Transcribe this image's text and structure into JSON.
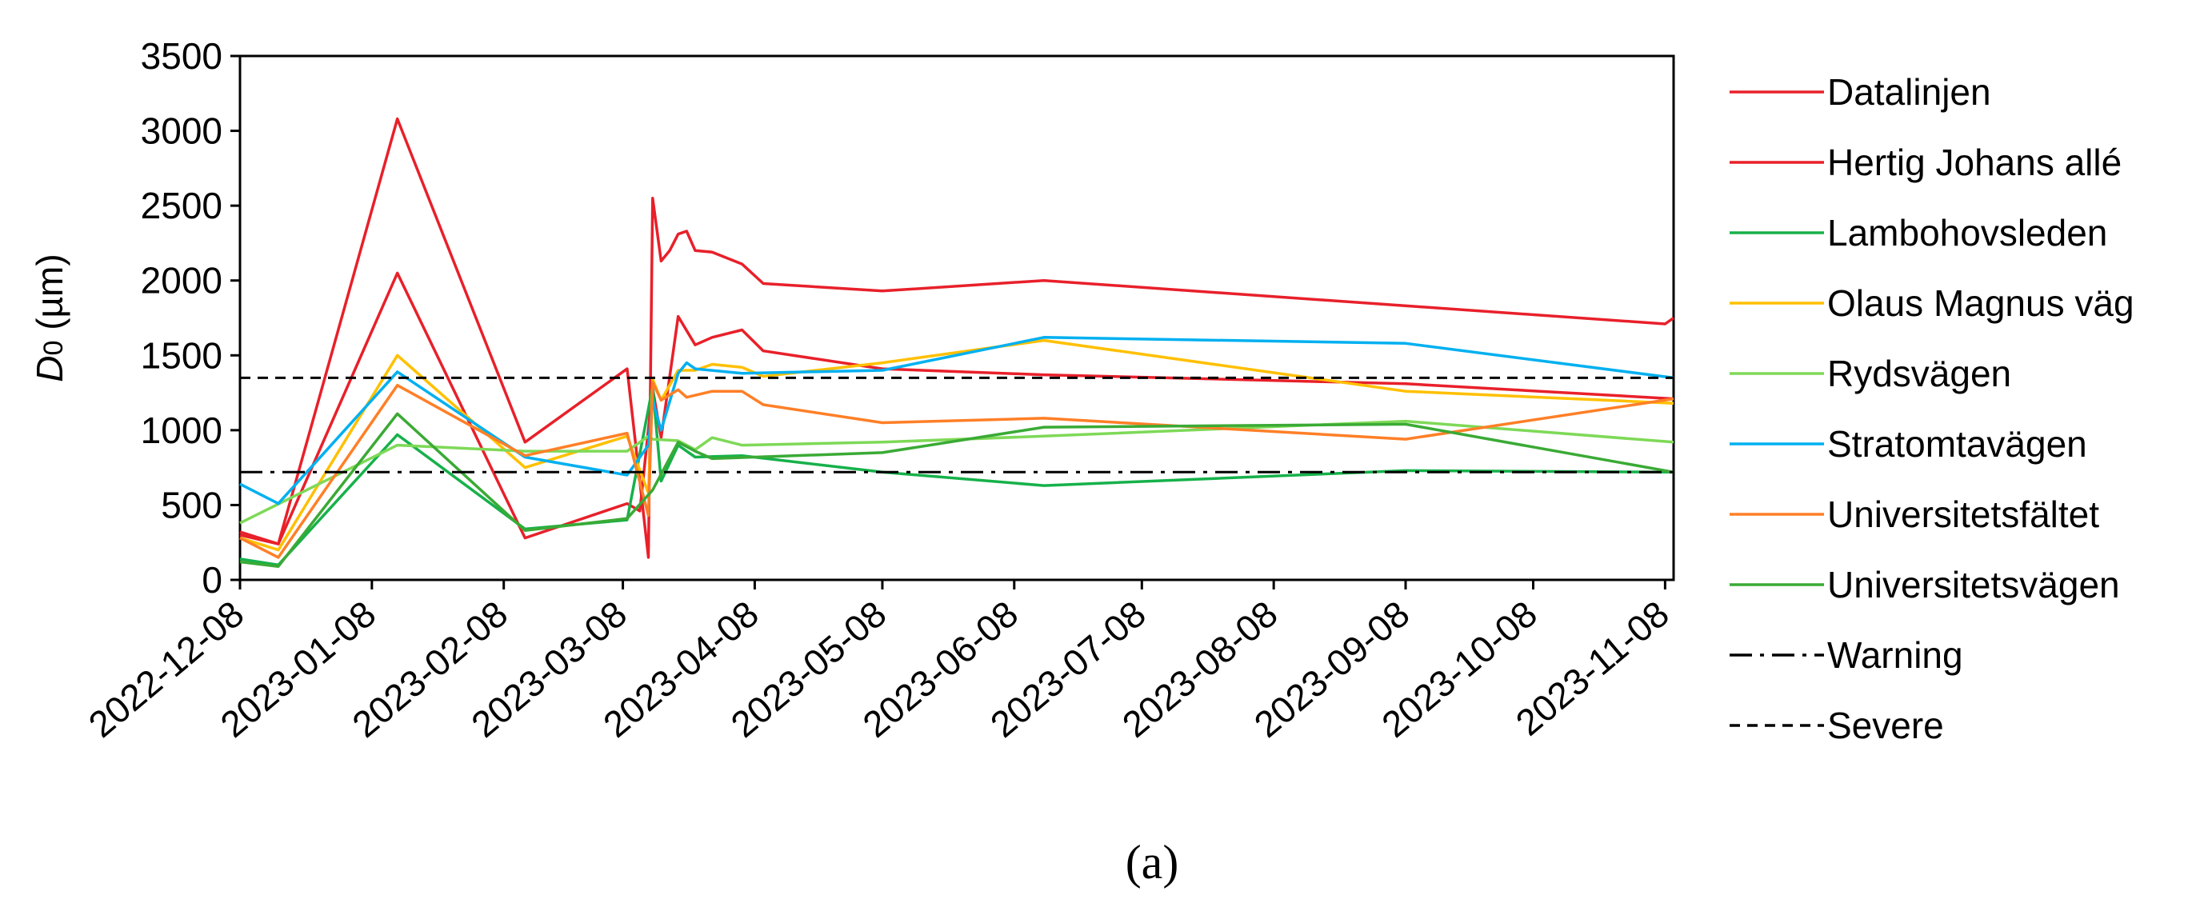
{
  "caption": "(a)",
  "chart_data": {
    "type": "line",
    "title": "",
    "xlabel": "",
    "ylabel_italic": "D",
    "ylabel_sub": "0",
    "ylabel_rest": " (µm)",
    "ylim": [
      0,
      3500
    ],
    "yticks": [
      0,
      500,
      1000,
      1500,
      2000,
      2500,
      3000,
      3500
    ],
    "xlim": [
      "2022-12-08",
      "2023-11-10"
    ],
    "xticks": [
      "2022-12-08",
      "2023-01-08",
      "2023-02-08",
      "2023-03-08",
      "2023-04-08",
      "2023-05-08",
      "2023-06-08",
      "2023-07-08",
      "2023-08-08",
      "2023-09-08",
      "2023-10-08",
      "2023-11-08"
    ],
    "grid": false,
    "legend_position": "right",
    "series": [
      {
        "name": "Datalinjen",
        "color": "#e8202a",
        "dash": "solid",
        "points": [
          [
            "2022-12-08",
            320
          ],
          [
            "2022-12-17",
            240
          ],
          [
            "2023-01-14",
            3080
          ],
          [
            "2023-02-13",
            920
          ],
          [
            "2023-03-09",
            1410
          ],
          [
            "2023-03-14",
            150
          ],
          [
            "2023-03-15",
            2550
          ],
          [
            "2023-03-17",
            2130
          ],
          [
            "2023-03-19",
            2200
          ],
          [
            "2023-03-21",
            2310
          ],
          [
            "2023-03-23",
            2330
          ],
          [
            "2023-03-25",
            2200
          ],
          [
            "2023-03-29",
            2190
          ],
          [
            "2023-04-05",
            2110
          ],
          [
            "2023-04-10",
            1980
          ],
          [
            "2023-05-08",
            1930
          ],
          [
            "2023-06-15",
            2000
          ],
          [
            "2023-11-08",
            1710
          ],
          [
            "2023-11-10",
            1750
          ]
        ]
      },
      {
        "name": "Hertig Johans allé",
        "color": "#e8202a",
        "dash": "solid",
        "points": [
          [
            "2022-12-08",
            300
          ],
          [
            "2022-12-17",
            240
          ],
          [
            "2023-01-14",
            2050
          ],
          [
            "2023-02-13",
            280
          ],
          [
            "2023-03-09",
            510
          ],
          [
            "2023-03-12",
            460
          ],
          [
            "2023-03-15",
            1280
          ],
          [
            "2023-03-17",
            950
          ],
          [
            "2023-03-21",
            1760
          ],
          [
            "2023-03-25",
            1570
          ],
          [
            "2023-03-29",
            1620
          ],
          [
            "2023-04-05",
            1670
          ],
          [
            "2023-04-10",
            1530
          ],
          [
            "2023-05-08",
            1410
          ],
          [
            "2023-06-15",
            1370
          ],
          [
            "2023-09-08",
            1310
          ],
          [
            "2023-11-10",
            1210
          ]
        ]
      },
      {
        "name": "Lambohovsleden",
        "color": "#16b14a",
        "dash": "solid",
        "points": [
          [
            "2022-12-08",
            140
          ],
          [
            "2022-12-17",
            100
          ],
          [
            "2023-01-14",
            970
          ],
          [
            "2023-02-13",
            340
          ],
          [
            "2023-03-09",
            400
          ],
          [
            "2023-03-15",
            1290
          ],
          [
            "2023-03-17",
            660
          ],
          [
            "2023-03-21",
            900
          ],
          [
            "2023-03-23",
            860
          ],
          [
            "2023-03-25",
            820
          ],
          [
            "2023-04-05",
            830
          ],
          [
            "2023-05-08",
            720
          ],
          [
            "2023-06-15",
            630
          ],
          [
            "2023-09-08",
            730
          ],
          [
            "2023-11-10",
            720
          ]
        ]
      },
      {
        "name": "Olaus Magnus väg",
        "color": "#ffc000",
        "dash": "solid",
        "points": [
          [
            "2022-12-08",
            280
          ],
          [
            "2022-12-17",
            200
          ],
          [
            "2023-01-14",
            1500
          ],
          [
            "2023-02-13",
            750
          ],
          [
            "2023-03-09",
            960
          ],
          [
            "2023-03-14",
            580
          ],
          [
            "2023-03-15",
            1340
          ],
          [
            "2023-03-17",
            1200
          ],
          [
            "2023-03-21",
            1400
          ],
          [
            "2023-03-25",
            1400
          ],
          [
            "2023-03-29",
            1440
          ],
          [
            "2023-04-05",
            1420
          ],
          [
            "2023-04-10",
            1360
          ],
          [
            "2023-05-08",
            1450
          ],
          [
            "2023-06-15",
            1600
          ],
          [
            "2023-09-08",
            1260
          ],
          [
            "2023-11-10",
            1180
          ]
        ]
      },
      {
        "name": "Rydsvägen",
        "color": "#7ed957",
        "dash": "solid",
        "points": [
          [
            "2022-12-08",
            380
          ],
          [
            "2023-01-14",
            900
          ],
          [
            "2023-02-13",
            860
          ],
          [
            "2023-03-09",
            860
          ],
          [
            "2023-03-14",
            960
          ],
          [
            "2023-03-15",
            940
          ],
          [
            "2023-03-21",
            930
          ],
          [
            "2023-03-25",
            870
          ],
          [
            "2023-03-29",
            950
          ],
          [
            "2023-04-05",
            900
          ],
          [
            "2023-05-08",
            920
          ],
          [
            "2023-06-15",
            960
          ],
          [
            "2023-09-08",
            1060
          ],
          [
            "2023-11-10",
            920
          ]
        ]
      },
      {
        "name": "Stratomtavägen",
        "color": "#00b0f0",
        "dash": "solid",
        "points": [
          [
            "2022-12-08",
            640
          ],
          [
            "2022-12-17",
            510
          ],
          [
            "2023-01-14",
            1390
          ],
          [
            "2023-02-13",
            820
          ],
          [
            "2023-03-09",
            700
          ],
          [
            "2023-03-14",
            900
          ],
          [
            "2023-03-15",
            1200
          ],
          [
            "2023-03-17",
            1000
          ],
          [
            "2023-03-21",
            1380
          ],
          [
            "2023-03-23",
            1450
          ],
          [
            "2023-03-25",
            1410
          ],
          [
            "2023-04-05",
            1380
          ],
          [
            "2023-05-08",
            1400
          ],
          [
            "2023-06-15",
            1620
          ],
          [
            "2023-09-08",
            1580
          ],
          [
            "2023-11-10",
            1350
          ]
        ]
      },
      {
        "name": "Universitetsfältet",
        "color": "#ff7f27",
        "dash": "solid",
        "points": [
          [
            "2022-12-08",
            280
          ],
          [
            "2022-12-17",
            150
          ],
          [
            "2023-01-14",
            1300
          ],
          [
            "2023-02-13",
            830
          ],
          [
            "2023-03-09",
            980
          ],
          [
            "2023-03-14",
            430
          ],
          [
            "2023-03-15",
            1320
          ],
          [
            "2023-03-17",
            1200
          ],
          [
            "2023-03-21",
            1270
          ],
          [
            "2023-03-23",
            1220
          ],
          [
            "2023-03-29",
            1260
          ],
          [
            "2023-04-05",
            1260
          ],
          [
            "2023-04-10",
            1170
          ],
          [
            "2023-05-08",
            1050
          ],
          [
            "2023-06-15",
            1080
          ],
          [
            "2023-09-08",
            940
          ],
          [
            "2023-11-10",
            1210
          ]
        ]
      },
      {
        "name": "Universitetsvägen",
        "color": "#3aaa35",
        "dash": "solid",
        "points": [
          [
            "2022-12-08",
            120
          ],
          [
            "2022-12-17",
            90
          ],
          [
            "2023-01-14",
            1110
          ],
          [
            "2023-02-13",
            330
          ],
          [
            "2023-03-09",
            410
          ],
          [
            "2023-03-15",
            600
          ],
          [
            "2023-03-21",
            920
          ],
          [
            "2023-03-25",
            860
          ],
          [
            "2023-03-29",
            810
          ],
          [
            "2023-05-08",
            850
          ],
          [
            "2023-06-15",
            1020
          ],
          [
            "2023-09-08",
            1040
          ],
          [
            "2023-11-10",
            720
          ]
        ]
      },
      {
        "name": "Warning",
        "color": "#000000",
        "dash": "dashdot",
        "points": [
          [
            "2022-12-08",
            720
          ],
          [
            "2023-11-10",
            720
          ]
        ]
      },
      {
        "name": "Severe",
        "color": "#000000",
        "dash": "dashed",
        "points": [
          [
            "2022-12-08",
            1350
          ],
          [
            "2023-11-10",
            1350
          ]
        ]
      }
    ]
  }
}
